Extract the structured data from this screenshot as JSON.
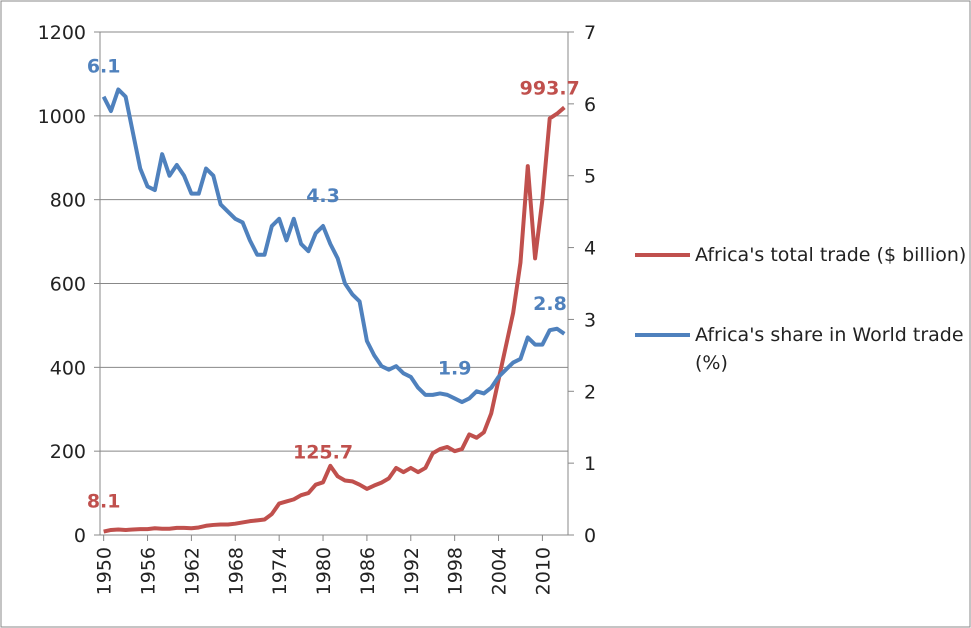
{
  "chart_data": {
    "type": "line",
    "categories": [
      "1950",
      null,
      null,
      null,
      null,
      null,
      "1956",
      null,
      null,
      null,
      null,
      null,
      "1962",
      null,
      null,
      null,
      null,
      null,
      "1968",
      null,
      null,
      null,
      null,
      null,
      "1974",
      null,
      null,
      null,
      null,
      null,
      "1980",
      null,
      null,
      null,
      null,
      null,
      "1986",
      null,
      null,
      null,
      null,
      null,
      "1992",
      null,
      null,
      null,
      null,
      null,
      "1998",
      null,
      null,
      null,
      null,
      null,
      "2004",
      null,
      null,
      null,
      null,
      null,
      "2010",
      null,
      null,
      null
    ],
    "series": [
      {
        "name": "Africa's total trade ($ billion)",
        "color": "#c0504d",
        "axis": "y",
        "values": [
          8.1,
          12,
          13,
          12,
          13,
          14,
          14,
          16,
          15,
          15,
          17,
          17,
          16,
          18,
          22,
          24,
          25,
          25,
          27,
          30,
          33,
          35,
          37,
          50,
          75,
          80,
          85,
          95,
          100,
          120,
          125.7,
          165,
          140,
          130,
          128,
          120,
          110,
          118,
          125,
          135,
          160,
          150,
          160,
          150,
          160,
          195,
          205,
          210,
          200,
          205,
          240,
          232,
          245,
          290,
          370,
          450,
          530,
          650,
          880,
          660,
          800,
          993.7,
          1005,
          1020
        ],
        "value_labels": [
          "8.1",
          null,
          null,
          null,
          null,
          null,
          null,
          null,
          null,
          null,
          null,
          null,
          null,
          null,
          null,
          null,
          null,
          null,
          null,
          null,
          null,
          null,
          null,
          null,
          null,
          null,
          null,
          null,
          null,
          null,
          "125.7",
          null,
          null,
          null,
          null,
          null,
          null,
          null,
          null,
          null,
          null,
          null,
          null,
          null,
          null,
          null,
          null,
          null,
          null,
          null,
          null,
          null,
          null,
          null,
          null,
          null,
          null,
          null,
          null,
          null,
          null,
          "993.7",
          null,
          null
        ]
      },
      {
        "name": "Africa's share in World trade (%)",
        "color": "#4f81bd",
        "axis": "y2",
        "values": [
          6.1,
          5.9,
          6.2,
          6.1,
          5.6,
          5.1,
          4.85,
          4.8,
          5.3,
          5.0,
          5.15,
          5.0,
          4.75,
          4.75,
          5.1,
          5.0,
          4.6,
          4.5,
          4.4,
          4.35,
          4.1,
          3.9,
          3.9,
          4.3,
          4.4,
          4.1,
          4.4,
          4.05,
          3.95,
          4.2,
          4.3,
          4.05,
          3.85,
          3.5,
          3.35,
          3.25,
          2.7,
          2.5,
          2.35,
          2.3,
          2.35,
          2.25,
          2.2,
          2.05,
          1.95,
          1.95,
          1.97,
          1.95,
          1.9,
          1.85,
          1.9,
          2.0,
          1.97,
          2.05,
          2.2,
          2.3,
          2.4,
          2.45,
          2.75,
          2.65,
          2.65,
          2.85,
          2.87,
          2.8
        ],
        "value_labels": [
          "6.1",
          null,
          null,
          null,
          null,
          null,
          null,
          null,
          null,
          null,
          null,
          null,
          null,
          null,
          null,
          null,
          null,
          null,
          null,
          null,
          null,
          null,
          null,
          null,
          null,
          null,
          null,
          null,
          null,
          null,
          "4.3",
          null,
          null,
          null,
          null,
          null,
          null,
          null,
          null,
          null,
          null,
          null,
          null,
          null,
          null,
          null,
          null,
          null,
          "1.9",
          null,
          null,
          null,
          null,
          null,
          null,
          null,
          null,
          null,
          null,
          null,
          null,
          null,
          null,
          "2.8"
        ]
      }
    ],
    "ylim": [
      0,
      1200
    ],
    "yticks": [
      0,
      200,
      400,
      600,
      800,
      1000,
      1200
    ],
    "y2lim": [
      0,
      7
    ],
    "y2ticks": [
      0,
      1,
      2,
      3,
      4,
      5,
      6,
      7
    ],
    "grid": true,
    "legend": "right"
  }
}
